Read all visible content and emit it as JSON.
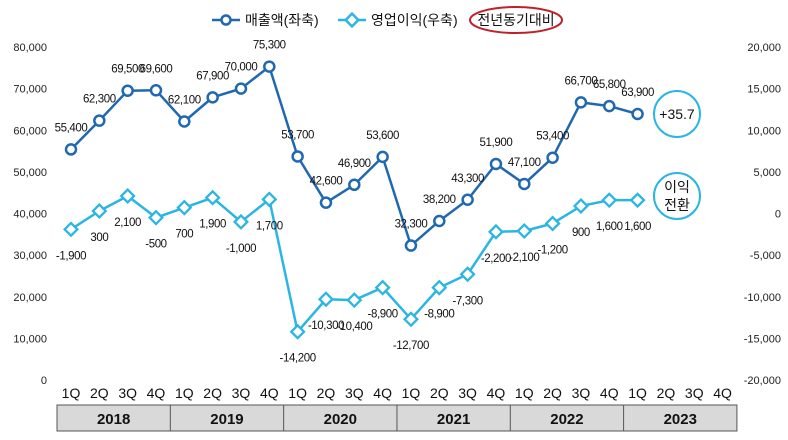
{
  "chart_data": {
    "type": "line",
    "legend": {
      "revenue_label": "매출액(좌축)",
      "profit_label": "영업이익(우축)",
      "yoy_label": "전년동기대비"
    },
    "colors": {
      "revenue": "#2068b0",
      "profit": "#2bb5e3",
      "callout_border": "#2bb5e3",
      "yoy_ellipse": "#c0202a",
      "year_band": "#d9d9d9"
    },
    "left_axis": {
      "min": 0,
      "max": 80000,
      "step": 10000,
      "ticks": [
        "0",
        "10,000",
        "20,000",
        "30,000",
        "40,000",
        "50,000",
        "60,000",
        "70,000",
        "80,000"
      ]
    },
    "right_axis": {
      "min": -20000,
      "max": 20000,
      "step": 5000,
      "ticks": [
        "-20,000",
        "-15,000",
        "-10,000",
        "-5,000",
        "0",
        "5,000",
        "10,000",
        "15,000",
        "20,000"
      ]
    },
    "quarters": [
      "1Q",
      "2Q",
      "3Q",
      "4Q",
      "1Q",
      "2Q",
      "3Q",
      "4Q",
      "1Q",
      "2Q",
      "3Q",
      "4Q",
      "1Q",
      "2Q",
      "3Q",
      "4Q",
      "1Q",
      "2Q",
      "3Q",
      "4Q",
      "1Q",
      "2Q",
      "3Q",
      "4Q"
    ],
    "years": [
      "2018",
      "2019",
      "2020",
      "2021",
      "2022",
      "2023"
    ],
    "series": [
      {
        "name": "매출액(좌축)",
        "axis": "left",
        "values": [
          55400,
          62300,
          69500,
          69600,
          62100,
          67900,
          70000,
          75300,
          53700,
          42600,
          46900,
          53600,
          32300,
          38200,
          43300,
          51900,
          47100,
          53400,
          66700,
          65800,
          63900,
          null,
          null,
          null
        ],
        "labels": [
          "55,400",
          "62,300",
          "69,500",
          "69,600",
          "62,100",
          "67,900",
          "70,000",
          "75,300",
          "53,700",
          "42,600",
          "46,900",
          "53,600",
          "32,300",
          "38,200",
          "43,300",
          "51,900",
          "47,100",
          "53,400",
          "66,700",
          "65,800",
          "63,900",
          "",
          "",
          ""
        ]
      },
      {
        "name": "영업이익(우축)",
        "axis": "right",
        "values": [
          -1900,
          300,
          2100,
          -500,
          700,
          1900,
          -1000,
          1700,
          -14200,
          -10300,
          -10400,
          -8900,
          -12700,
          -8900,
          -7300,
          -2200,
          -2100,
          -1200,
          900,
          1600,
          1600,
          null,
          null,
          null
        ],
        "labels": [
          "-1,900",
          "300",
          "2,100",
          "-500",
          "700",
          "1,900",
          "-1,000",
          "1,700",
          "-14,200",
          "-10,300",
          "-10,400",
          "-8,900",
          "-12,700",
          "-8,900",
          "-7,300",
          "-2,200",
          "-2,100",
          "-1,200",
          "900",
          "1,600",
          "1,600",
          "",
          "",
          ""
        ]
      }
    ],
    "annotations": {
      "revenue_yoy": "+35.7",
      "profit_note_line1": "이익",
      "profit_note_line2": "전환"
    }
  }
}
